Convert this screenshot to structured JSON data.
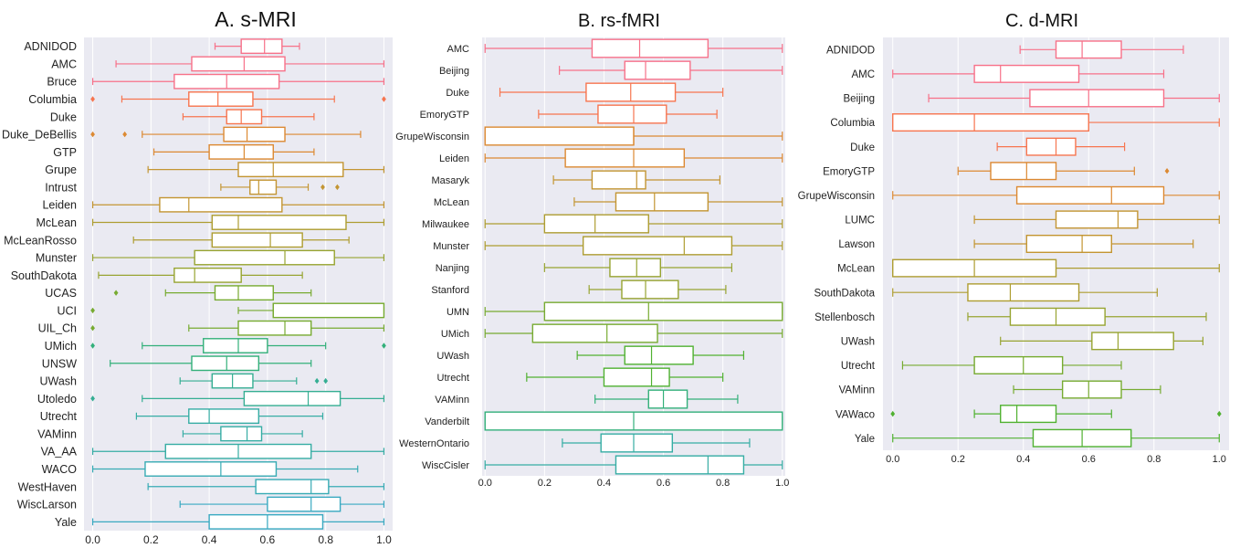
{
  "chart_data": [
    {
      "type": "box",
      "title": "A.   s-MRI",
      "xlim": [
        -0.03,
        1.03
      ],
      "xticks": [
        "0.0",
        "0.2",
        "0.4",
        "0.6",
        "0.8",
        "1.0"
      ],
      "xtick_values": [
        0,
        0.2,
        0.4,
        0.6,
        0.8,
        1.0
      ],
      "grid": true,
      "categories": [
        "ADNIDOD",
        "AMC",
        "Bruce",
        "Columbia",
        "Duke",
        "Duke_DeBellis",
        "GTP",
        "Grupe",
        "Intrust",
        "Leiden",
        "McLean",
        "McLeanRosso",
        "Munster",
        "SouthDakota",
        "UCAS",
        "UCI",
        "UIL_Ch",
        "UMich",
        "UNSW",
        "UWash",
        "Utoledo",
        "Utrecht",
        "VAMinn",
        "VA_AA",
        "WACO",
        "WestHaven",
        "WiscLarson",
        "Yale"
      ],
      "boxes": [
        {
          "whislo": 0.42,
          "q1": 0.51,
          "med": 0.59,
          "q3": 0.65,
          "whishi": 0.71,
          "fliers": []
        },
        {
          "whislo": 0.08,
          "q1": 0.34,
          "med": 0.52,
          "q3": 0.66,
          "whishi": 1.0,
          "fliers": []
        },
        {
          "whislo": 0.0,
          "q1": 0.28,
          "med": 0.46,
          "q3": 0.64,
          "whishi": 1.0,
          "fliers": []
        },
        {
          "whislo": 0.1,
          "q1": 0.33,
          "med": 0.43,
          "q3": 0.55,
          "whishi": 0.83,
          "fliers": [
            0.0,
            1.0
          ]
        },
        {
          "whislo": 0.31,
          "q1": 0.46,
          "med": 0.51,
          "q3": 0.58,
          "whishi": 0.76,
          "fliers": []
        },
        {
          "whislo": 0.17,
          "q1": 0.45,
          "med": 0.53,
          "q3": 0.66,
          "whishi": 0.92,
          "fliers": [
            0.0,
            0.11
          ]
        },
        {
          "whislo": 0.21,
          "q1": 0.4,
          "med": 0.52,
          "q3": 0.62,
          "whishi": 0.76,
          "fliers": []
        },
        {
          "whislo": 0.19,
          "q1": 0.5,
          "med": 0.62,
          "q3": 0.86,
          "whishi": 1.0,
          "fliers": []
        },
        {
          "whislo": 0.44,
          "q1": 0.54,
          "med": 0.57,
          "q3": 0.63,
          "whishi": 0.74,
          "fliers": [
            0.79,
            0.84
          ]
        },
        {
          "whislo": 0.0,
          "q1": 0.23,
          "med": 0.33,
          "q3": 0.65,
          "whishi": 1.0,
          "fliers": []
        },
        {
          "whislo": 0.0,
          "q1": 0.41,
          "med": 0.5,
          "q3": 0.87,
          "whishi": 1.0,
          "fliers": []
        },
        {
          "whislo": 0.14,
          "q1": 0.41,
          "med": 0.61,
          "q3": 0.72,
          "whishi": 0.88,
          "fliers": []
        },
        {
          "whislo": 0.0,
          "q1": 0.35,
          "med": 0.66,
          "q3": 0.83,
          "whishi": 1.0,
          "fliers": []
        },
        {
          "whislo": 0.02,
          "q1": 0.28,
          "med": 0.35,
          "q3": 0.51,
          "whishi": 0.72,
          "fliers": []
        },
        {
          "whislo": 0.25,
          "q1": 0.42,
          "med": 0.5,
          "q3": 0.62,
          "whishi": 0.75,
          "fliers": [
            0.08
          ]
        },
        {
          "whislo": 0.5,
          "q1": 0.62,
          "med": 0.62,
          "q3": 1.0,
          "whishi": 1.0,
          "fliers": [
            0.0
          ]
        },
        {
          "whislo": 0.33,
          "q1": 0.5,
          "med": 0.66,
          "q3": 0.75,
          "whishi": 1.0,
          "fliers": [
            0.0
          ]
        },
        {
          "whislo": 0.17,
          "q1": 0.38,
          "med": 0.5,
          "q3": 0.6,
          "whishi": 0.8,
          "fliers": [
            0.0,
            1.0
          ]
        },
        {
          "whislo": 0.06,
          "q1": 0.34,
          "med": 0.46,
          "q3": 0.57,
          "whishi": 0.75,
          "fliers": []
        },
        {
          "whislo": 0.3,
          "q1": 0.41,
          "med": 0.48,
          "q3": 0.55,
          "whishi": 0.7,
          "fliers": [
            0.77,
            0.8
          ]
        },
        {
          "whislo": 0.17,
          "q1": 0.52,
          "med": 0.74,
          "q3": 0.85,
          "whishi": 1.0,
          "fliers": [
            0.0
          ]
        },
        {
          "whislo": 0.15,
          "q1": 0.33,
          "med": 0.4,
          "q3": 0.57,
          "whishi": 0.79,
          "fliers": []
        },
        {
          "whislo": 0.31,
          "q1": 0.44,
          "med": 0.53,
          "q3": 0.58,
          "whishi": 0.72,
          "fliers": []
        },
        {
          "whislo": 0.0,
          "q1": 0.25,
          "med": 0.5,
          "q3": 0.75,
          "whishi": 1.0,
          "fliers": []
        },
        {
          "whislo": 0.0,
          "q1": 0.18,
          "med": 0.44,
          "q3": 0.63,
          "whishi": 0.91,
          "fliers": []
        },
        {
          "whislo": 0.19,
          "q1": 0.56,
          "med": 0.75,
          "q3": 0.81,
          "whishi": 1.0,
          "fliers": []
        },
        {
          "whislo": 0.3,
          "q1": 0.6,
          "med": 0.75,
          "q3": 0.85,
          "whishi": 1.0,
          "fliers": []
        },
        {
          "whislo": 0.0,
          "q1": 0.4,
          "med": 0.6,
          "q3": 0.79,
          "whishi": 1.0,
          "fliers": []
        }
      ]
    },
    {
      "type": "box",
      "title": "B. rs-fMRI",
      "xlim": [
        -0.01,
        1.01
      ],
      "xticks": [
        "0.0",
        "0.2",
        "0.4",
        "0.6",
        "0.8",
        "1.0"
      ],
      "xtick_values": [
        0,
        0.2,
        0.4,
        0.6,
        0.8,
        1.0
      ],
      "grid": true,
      "categories": [
        "AMC",
        "Beijing",
        "Duke",
        "EmoryGTP",
        "GrupeWisconsin",
        "Leiden",
        "Masaryk",
        "McLean",
        "Milwaukee",
        "Munster",
        "Nanjing",
        "Stanford",
        "UMN",
        "UMich",
        "UWash",
        "Utrecht",
        "VAMinn",
        "Vanderbilt",
        "WesternOntario",
        "WiscCisler"
      ],
      "boxes": [
        {
          "whislo": 0.0,
          "q1": 0.36,
          "med": 0.52,
          "q3": 0.75,
          "whishi": 1.0,
          "fliers": []
        },
        {
          "whislo": 0.25,
          "q1": 0.47,
          "med": 0.54,
          "q3": 0.69,
          "whishi": 1.0,
          "fliers": []
        },
        {
          "whislo": 0.05,
          "q1": 0.34,
          "med": 0.49,
          "q3": 0.64,
          "whishi": 0.8,
          "fliers": []
        },
        {
          "whislo": 0.18,
          "q1": 0.38,
          "med": 0.5,
          "q3": 0.61,
          "whishi": 0.78,
          "fliers": []
        },
        {
          "whislo": 0.0,
          "q1": 0.0,
          "med": 0.5,
          "q3": 0.5,
          "whishi": 1.0,
          "fliers": []
        },
        {
          "whislo": 0.0,
          "q1": 0.27,
          "med": 0.5,
          "q3": 0.67,
          "whishi": 1.0,
          "fliers": []
        },
        {
          "whislo": 0.23,
          "q1": 0.36,
          "med": 0.51,
          "q3": 0.54,
          "whishi": 0.79,
          "fliers": []
        },
        {
          "whislo": 0.3,
          "q1": 0.44,
          "med": 0.57,
          "q3": 0.75,
          "whishi": 1.0,
          "fliers": []
        },
        {
          "whislo": 0.0,
          "q1": 0.2,
          "med": 0.37,
          "q3": 0.55,
          "whishi": 1.0,
          "fliers": []
        },
        {
          "whislo": 0.0,
          "q1": 0.33,
          "med": 0.67,
          "q3": 0.83,
          "whishi": 1.0,
          "fliers": []
        },
        {
          "whislo": 0.2,
          "q1": 0.42,
          "med": 0.51,
          "q3": 0.59,
          "whishi": 0.83,
          "fliers": []
        },
        {
          "whislo": 0.35,
          "q1": 0.46,
          "med": 0.54,
          "q3": 0.65,
          "whishi": 0.81,
          "fliers": []
        },
        {
          "whislo": 0.0,
          "q1": 0.2,
          "med": 0.55,
          "q3": 1.0,
          "whishi": 1.0,
          "fliers": []
        },
        {
          "whislo": 0.0,
          "q1": 0.16,
          "med": 0.41,
          "q3": 0.58,
          "whishi": 1.0,
          "fliers": []
        },
        {
          "whislo": 0.31,
          "q1": 0.47,
          "med": 0.56,
          "q3": 0.7,
          "whishi": 0.87,
          "fliers": []
        },
        {
          "whislo": 0.14,
          "q1": 0.4,
          "med": 0.56,
          "q3": 0.62,
          "whishi": 0.8,
          "fliers": []
        },
        {
          "whislo": 0.37,
          "q1": 0.55,
          "med": 0.6,
          "q3": 0.68,
          "whishi": 0.85,
          "fliers": []
        },
        {
          "whislo": 0.0,
          "q1": 0.0,
          "med": 0.5,
          "q3": 1.0,
          "whishi": 1.0,
          "fliers": []
        },
        {
          "whislo": 0.26,
          "q1": 0.39,
          "med": 0.5,
          "q3": 0.63,
          "whishi": 0.89,
          "fliers": []
        },
        {
          "whislo": 0.0,
          "q1": 0.44,
          "med": 0.75,
          "q3": 0.87,
          "whishi": 1.0,
          "fliers": []
        }
      ]
    },
    {
      "type": "box",
      "title": "C. d-MRI",
      "xlim": [
        -0.03,
        1.03
      ],
      "xticks": [
        "0.0",
        "0.2",
        "0.4",
        "0.6",
        "0.8",
        "1.0"
      ],
      "xtick_values": [
        0,
        0.2,
        0.4,
        0.6,
        0.8,
        1.0
      ],
      "grid": true,
      "categories": [
        "ADNIDOD",
        "AMC",
        "Beijing",
        "Columbia",
        "Duke",
        "EmoryGTP",
        "GrupeWisconsin",
        "LUMC",
        "Lawson",
        "McLean",
        "SouthDakota",
        "Stellenbosch",
        "UWash",
        "Utrecht",
        "VAMinn",
        "VAWaco",
        "Yale"
      ],
      "boxes": [
        {
          "whislo": 0.39,
          "q1": 0.5,
          "med": 0.58,
          "q3": 0.7,
          "whishi": 0.89,
          "fliers": []
        },
        {
          "whislo": 0.0,
          "q1": 0.25,
          "med": 0.33,
          "q3": 0.57,
          "whishi": 0.83,
          "fliers": []
        },
        {
          "whislo": 0.11,
          "q1": 0.42,
          "med": 0.6,
          "q3": 0.83,
          "whishi": 1.0,
          "fliers": []
        },
        {
          "whislo": 0.0,
          "q1": 0.0,
          "med": 0.25,
          "q3": 0.6,
          "whishi": 1.0,
          "fliers": []
        },
        {
          "whislo": 0.32,
          "q1": 0.41,
          "med": 0.5,
          "q3": 0.56,
          "whishi": 0.71,
          "fliers": []
        },
        {
          "whislo": 0.2,
          "q1": 0.3,
          "med": 0.41,
          "q3": 0.5,
          "whishi": 0.74,
          "fliers": [
            0.84
          ]
        },
        {
          "whislo": 0.0,
          "q1": 0.38,
          "med": 0.67,
          "q3": 0.83,
          "whishi": 1.0,
          "fliers": []
        },
        {
          "whislo": 0.25,
          "q1": 0.5,
          "med": 0.69,
          "q3": 0.75,
          "whishi": 1.0,
          "fliers": []
        },
        {
          "whislo": 0.25,
          "q1": 0.41,
          "med": 0.58,
          "q3": 0.67,
          "whishi": 0.92,
          "fliers": []
        },
        {
          "whislo": 0.0,
          "q1": 0.0,
          "med": 0.25,
          "q3": 0.5,
          "whishi": 1.0,
          "fliers": []
        },
        {
          "whislo": 0.0,
          "q1": 0.23,
          "med": 0.36,
          "q3": 0.57,
          "whishi": 0.81,
          "fliers": []
        },
        {
          "whislo": 0.23,
          "q1": 0.36,
          "med": 0.5,
          "q3": 0.65,
          "whishi": 0.96,
          "fliers": []
        },
        {
          "whislo": 0.33,
          "q1": 0.61,
          "med": 0.69,
          "q3": 0.86,
          "whishi": 0.95,
          "fliers": []
        },
        {
          "whislo": 0.03,
          "q1": 0.25,
          "med": 0.4,
          "q3": 0.52,
          "whishi": 0.7,
          "fliers": []
        },
        {
          "whislo": 0.37,
          "q1": 0.52,
          "med": 0.6,
          "q3": 0.7,
          "whishi": 0.82,
          "fliers": []
        },
        {
          "whislo": 0.25,
          "q1": 0.33,
          "med": 0.38,
          "q3": 0.5,
          "whishi": 0.67,
          "fliers": [
            0.0,
            1.0
          ]
        },
        {
          "whislo": 0.0,
          "q1": 0.43,
          "med": 0.58,
          "q3": 0.73,
          "whishi": 1.0,
          "fliers": []
        }
      ]
    }
  ],
  "colors": {
    "panel_bg": "#eaeaf2",
    "grid": "#ffffff",
    "palette_A": [
      "#f77189",
      "#f7754f",
      "#dc8932",
      "#c39532",
      "#ae9d31",
      "#97a431",
      "#77ab31",
      "#33b07a",
      "#35ae93",
      "#36ada4",
      "#37abb4",
      "#39a9c1"
    ],
    "palette_B": [
      "#f77189",
      "#f7754f",
      "#dc8932",
      "#c39532",
      "#ae9d31",
      "#97a431",
      "#77ab31",
      "#50b131",
      "#33b07a",
      "#36ada4"
    ],
    "palette_C": [
      "#f77189",
      "#f7754f",
      "#dc8932",
      "#c39532",
      "#ae9d31",
      "#97a431",
      "#77ab31",
      "#50b131"
    ]
  }
}
